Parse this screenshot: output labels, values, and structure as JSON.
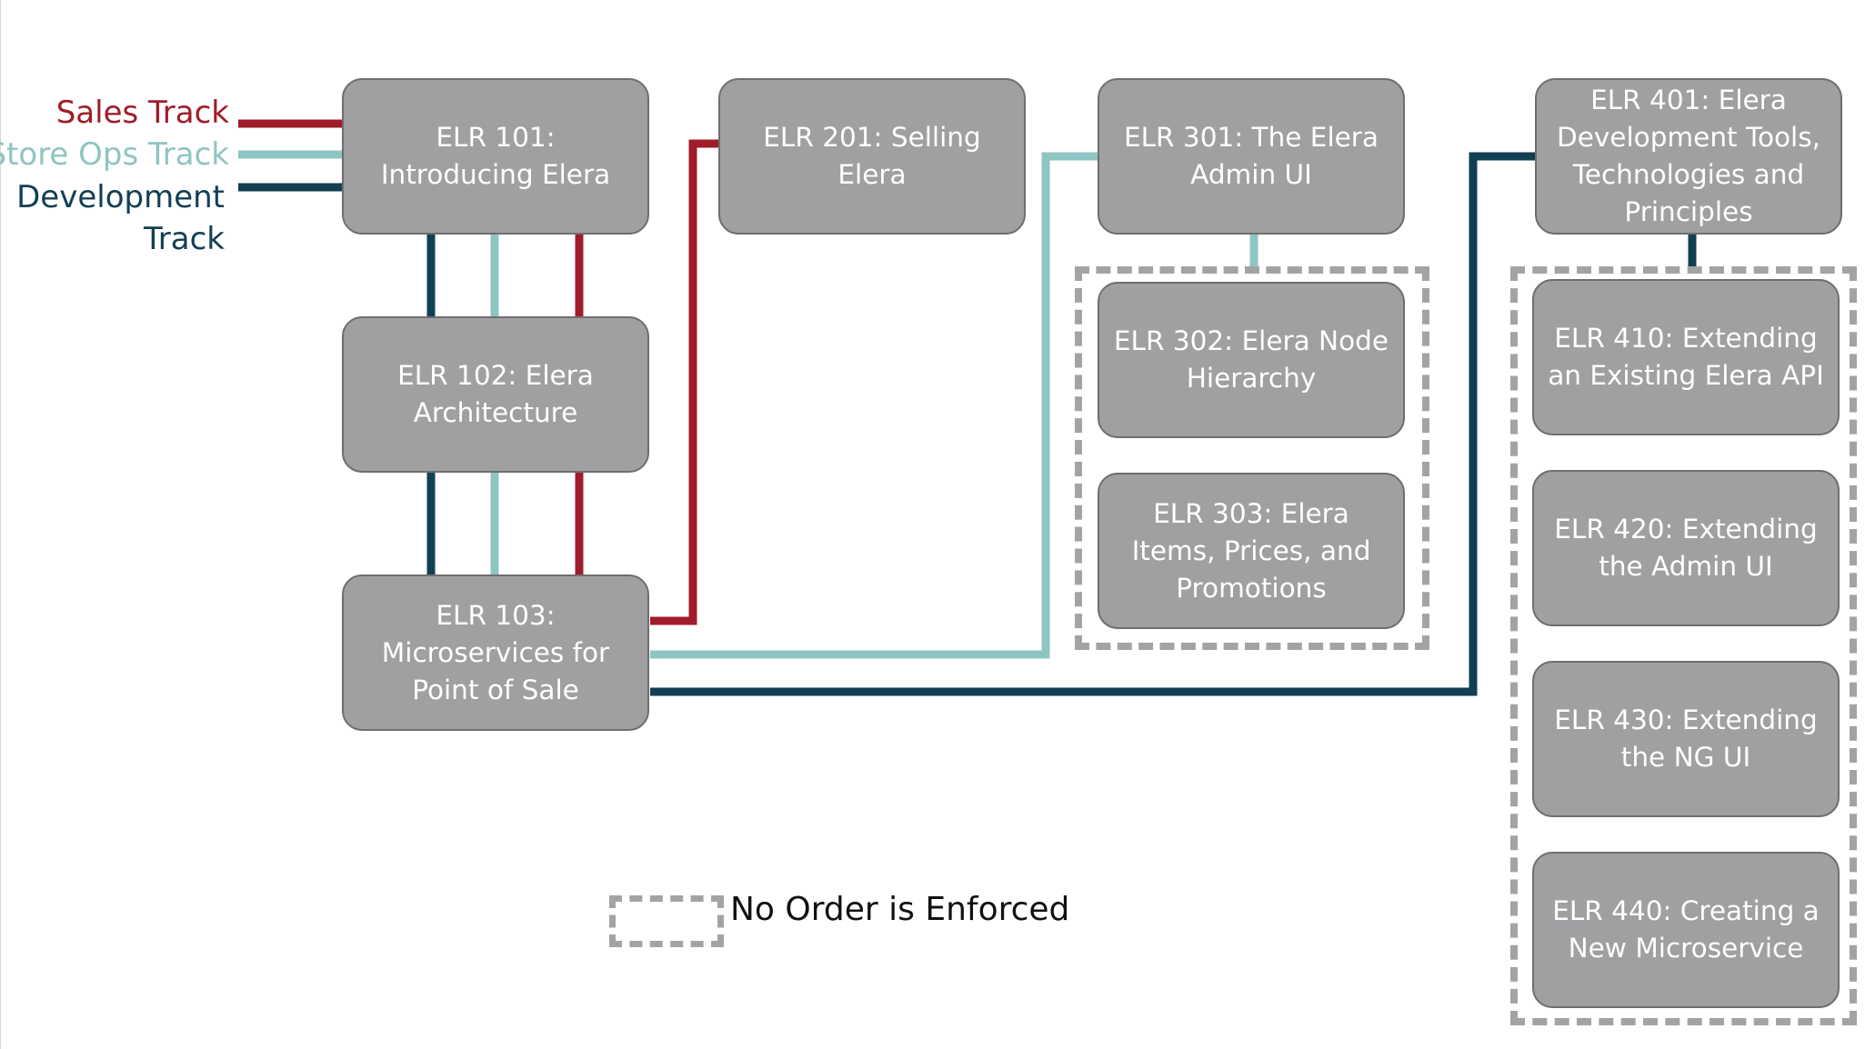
{
  "tracks": {
    "sales": {
      "label": "Sales Track",
      "color": "#a01c2a"
    },
    "store_ops": {
      "label": "Store Ops Track",
      "color": "#8ec5c2"
    },
    "development": {
      "label": "Development",
      "label2": "Track",
      "color": "#123f52"
    }
  },
  "courses": {
    "elr101": "ELR 101: Introducing Elera",
    "elr102": "ELR 102: Elera Architecture",
    "elr103": "ELR 103: Microservices for Point of Sale",
    "elr201": "ELR 201: Selling Elera",
    "elr301": "ELR 301: The Elera Admin UI",
    "elr302": "ELR 302: Elera Node Hierarchy",
    "elr303": "ELR 303: Elera Items, Prices, and Promotions",
    "elr401": "ELR 401: Elera Development Tools, Technologies and Principles",
    "elr410": "ELR 410: Extending an Existing Elera API",
    "elr420": "ELR 420: Extending the Admin UI",
    "elr430": "ELR 430: Extending the NG UI",
    "elr440": "ELR 440: Creating a New Microservice"
  },
  "legend": {
    "label": "No Order is Enforced",
    "dash_color": "#a3a3a6"
  },
  "colors": {
    "node_fill": "#a0a0a3",
    "node_border": "#6e6e70",
    "node_text": "#ffffff"
  }
}
